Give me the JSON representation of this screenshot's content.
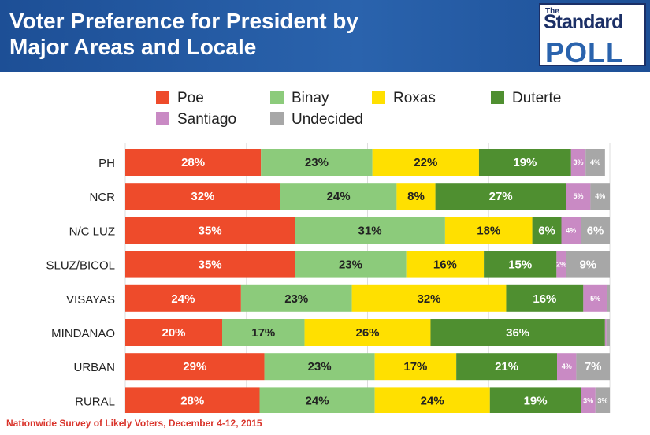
{
  "header": {
    "title_line1": "Voter Preference for President by",
    "title_line2": "Major Areas and Locale"
  },
  "logo": {
    "small": "The",
    "line1": "Standard",
    "line2": "POLL"
  },
  "source_note": "Nationwide Survey of Likely Voters, December 4-12, 2015",
  "colors": {
    "Poe": "#ee4b2b",
    "Binay": "#8ccb7b",
    "Roxas": "#ffe000",
    "Duterte": "#4f8f30",
    "Santiago": "#c98ac4",
    "Undecided": "#a7a7a7"
  },
  "chart_data": {
    "type": "bar",
    "orientation": "horizontal",
    "stacked": true,
    "title": "Voter Preference for President by Major Areas and Locale",
    "legend_position": "top",
    "grid": true,
    "xlim": [
      0,
      100
    ],
    "categories": [
      "PH",
      "NCR",
      "N/C LUZ",
      "SLUZ/BICOL",
      "VISAYAS",
      "MINDANAO",
      "URBAN",
      "RURAL"
    ],
    "series": [
      {
        "name": "Poe",
        "values": [
          28,
          32,
          35,
          35,
          24,
          20,
          29,
          28
        ],
        "labels": [
          "28%",
          "32%",
          "35%",
          "35%",
          "24%",
          "20%",
          "29%",
          "28%"
        ]
      },
      {
        "name": "Binay",
        "values": [
          23,
          24,
          31,
          23,
          23,
          17,
          23,
          24
        ],
        "labels": [
          "23%",
          "24%",
          "31%",
          "23%",
          "23%",
          "17%",
          "23%",
          "24%"
        ]
      },
      {
        "name": "Roxas",
        "values": [
          22,
          8,
          18,
          16,
          32,
          26,
          17,
          24
        ],
        "labels": [
          "22%",
          "8%",
          "18%",
          "16%",
          "32%",
          "26%",
          "17%",
          "24%"
        ]
      },
      {
        "name": "Duterte",
        "values": [
          19,
          27,
          6,
          15,
          16,
          36,
          21,
          19
        ],
        "labels": [
          "19%",
          "27%",
          "6%",
          "15%",
          "16%",
          "36%",
          "21%",
          "19%"
        ]
      },
      {
        "name": "Santiago",
        "values": [
          3,
          5,
          4,
          2,
          5,
          0.3,
          4,
          3
        ],
        "labels": [
          "3%",
          "5%",
          "4%",
          "2%",
          "5%",
          "",
          "4%",
          "3%"
        ]
      },
      {
        "name": "Undecided",
        "values": [
          4,
          4,
          6,
          9,
          0.5,
          0.7,
          7,
          3
        ],
        "labels": [
          "4%",
          "4%",
          "6%",
          "9%",
          "",
          "",
          "7%",
          "3%"
        ]
      }
    ]
  }
}
